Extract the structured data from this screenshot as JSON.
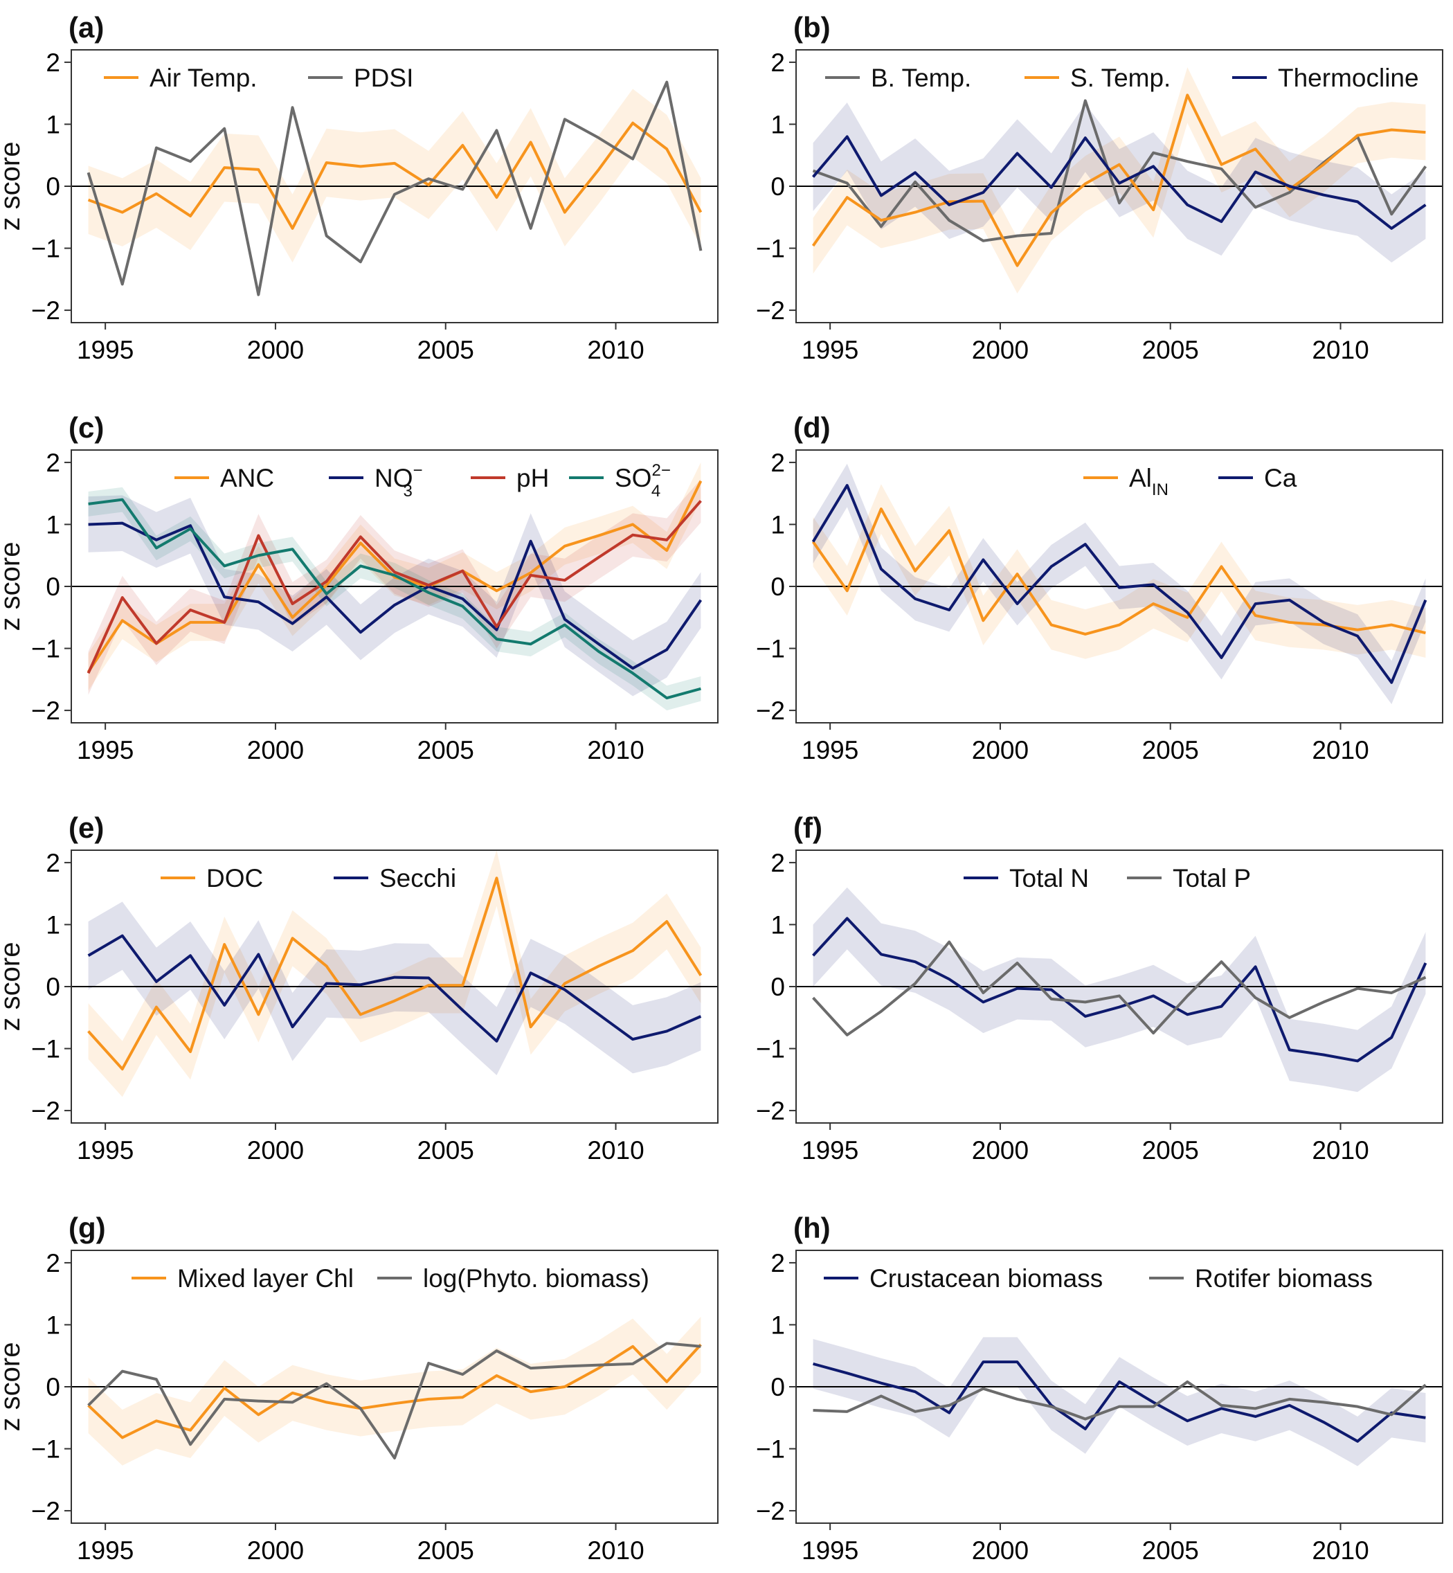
{
  "colors": {
    "orange": "#F7941D",
    "gray": "#6B6B6B",
    "navy": "#0E1A6E",
    "red": "#C0392B",
    "teal": "#137A6E"
  },
  "ylabel": "z score",
  "x_ticks": [
    1995,
    2000,
    2005,
    2010
  ],
  "y_ticks": [
    -2,
    -1,
    0,
    1,
    2
  ],
  "chart_data": [
    {
      "type": "line",
      "panel": "(a)",
      "ylabel": "z score",
      "xlim": [
        1994,
        2013
      ],
      "ylim": [
        -2.2,
        2.2
      ],
      "grid": false,
      "legend_position": "top-left",
      "x": [
        1994.5,
        1995.5,
        1996.5,
        1997.5,
        1998.5,
        1999.5,
        2000.5,
        2001.5,
        2002.5,
        2003.5,
        2004.5,
        2005.5,
        2006.5,
        2007.5,
        2008.5,
        2009.5,
        2010.5,
        2011.5,
        2012.5
      ],
      "series": [
        {
          "name": "Air Temp.",
          "color": "orange",
          "values": [
            -0.22,
            -0.42,
            -0.12,
            -0.48,
            0.3,
            0.27,
            -0.68,
            0.38,
            0.32,
            0.37,
            0.02,
            0.66,
            -0.18,
            0.71,
            -0.42,
            0.27,
            1.02,
            0.6,
            -0.42
          ],
          "band": 0.55
        },
        {
          "name": "PDSI",
          "color": "gray",
          "values": [
            0.22,
            -1.58,
            0.62,
            0.4,
            0.93,
            -1.75,
            1.27,
            -0.8,
            -1.22,
            -0.13,
            0.12,
            -0.05,
            0.9,
            -0.68,
            1.08,
            0.78,
            0.44,
            1.68,
            -1.04
          ]
        }
      ]
    },
    {
      "type": "line",
      "panel": "(b)",
      "ylabel": "",
      "xlim": [
        1994,
        2013
      ],
      "ylim": [
        -2.2,
        2.2
      ],
      "grid": false,
      "legend_position": "top-center",
      "x": [
        1994.5,
        1995.5,
        1996.5,
        1997.5,
        1998.5,
        1999.5,
        2000.5,
        2001.5,
        2002.5,
        2003.5,
        2004.5,
        2005.5,
        2006.5,
        2007.5,
        2008.5,
        2009.5,
        2010.5,
        2011.5,
        2012.5
      ],
      "series": [
        {
          "name": "B. Temp.",
          "color": "gray",
          "values": [
            0.25,
            0.05,
            -0.65,
            0.07,
            -0.55,
            -0.88,
            -0.8,
            -0.76,
            1.38,
            -0.27,
            0.54,
            0.4,
            0.28,
            -0.34,
            -0.1,
            0.38,
            0.8,
            -0.45,
            0.32
          ]
        },
        {
          "name": "S. Temp.",
          "color": "orange",
          "values": [
            -0.96,
            -0.18,
            -0.55,
            -0.42,
            -0.25,
            -0.24,
            -1.28,
            -0.43,
            0.04,
            0.35,
            -0.38,
            1.47,
            0.35,
            0.6,
            -0.05,
            0.35,
            0.82,
            0.91,
            0.87
          ],
          "band": 0.45
        },
        {
          "name": "Thermocline",
          "color": "navy",
          "values": [
            0.15,
            0.8,
            -0.15,
            0.22,
            -0.3,
            -0.1,
            0.53,
            -0.02,
            0.78,
            0.05,
            0.32,
            -0.3,
            -0.57,
            0.23,
            0.0,
            -0.14,
            -0.25,
            -0.68,
            -0.3
          ],
          "band": 0.55
        }
      ]
    },
    {
      "type": "line",
      "panel": "(c)",
      "ylabel": "z score",
      "xlim": [
        1994,
        2013
      ],
      "ylim": [
        -2.2,
        2.2
      ],
      "grid": false,
      "legend_position": "top-right",
      "x": [
        1994.5,
        1995.5,
        1996.5,
        1997.5,
        1998.5,
        1999.5,
        2000.5,
        2001.5,
        2002.5,
        2003.5,
        2004.5,
        2005.5,
        2006.5,
        2007.5,
        2008.5,
        2009.5,
        2010.5,
        2011.5,
        2012.5
      ],
      "series": [
        {
          "name": "ANC",
          "color": "orange",
          "values": [
            -1.38,
            -0.55,
            -0.92,
            -0.58,
            -0.58,
            0.35,
            -0.5,
            0.02,
            0.7,
            0.15,
            0.0,
            0.25,
            -0.07,
            0.22,
            0.65,
            0.82,
            1.0,
            0.58,
            1.7
          ],
          "band": 0.3
        },
        {
          "name": "NO3",
          "sub": "3",
          "sup": "−",
          "color": "navy",
          "values": [
            1.0,
            1.02,
            0.75,
            0.98,
            -0.17,
            -0.25,
            -0.6,
            -0.17,
            -0.74,
            -0.3,
            0.0,
            -0.2,
            -0.7,
            0.73,
            -0.53,
            -0.93,
            -1.32,
            -1.02,
            -0.22
          ],
          "band": 0.45
        },
        {
          "name": "pH",
          "color": "red",
          "values": [
            -1.4,
            -0.18,
            -0.92,
            -0.38,
            -0.58,
            0.82,
            -0.28,
            0.08,
            0.8,
            0.23,
            0.02,
            0.25,
            -0.65,
            0.18,
            0.1,
            0.47,
            0.83,
            0.75,
            1.38
          ],
          "band": 0.35
        },
        {
          "name": "SO4",
          "sub": "4",
          "sup": "2−",
          "color": "teal",
          "values": [
            1.33,
            1.4,
            0.62,
            0.93,
            0.33,
            0.5,
            0.6,
            -0.12,
            0.33,
            0.18,
            -0.1,
            -0.32,
            -0.85,
            -0.93,
            -0.62,
            -1.05,
            -1.4,
            -1.8,
            -1.65
          ],
          "band": 0.2
        }
      ]
    },
    {
      "type": "line",
      "panel": "(d)",
      "ylabel": "",
      "xlim": [
        1994,
        2013
      ],
      "ylim": [
        -2.2,
        2.2
      ],
      "grid": false,
      "legend_position": "top-right",
      "x": [
        1994.5,
        1995.5,
        1996.5,
        1997.5,
        1998.5,
        1999.5,
        2000.5,
        2001.5,
        2002.5,
        2003.5,
        2004.5,
        2005.5,
        2006.5,
        2007.5,
        2008.5,
        2009.5,
        2010.5,
        2011.5,
        2012.5
      ],
      "series": [
        {
          "name": "Al",
          "sub": "IN",
          "color": "orange",
          "values": [
            0.72,
            -0.07,
            1.25,
            0.25,
            0.9,
            -0.55,
            0.2,
            -0.62,
            -0.77,
            -0.62,
            -0.28,
            -0.5,
            0.32,
            -0.47,
            -0.58,
            -0.62,
            -0.7,
            -0.62,
            -0.75
          ],
          "band": 0.4
        },
        {
          "name": "Ca",
          "color": "navy",
          "values": [
            0.72,
            1.63,
            0.28,
            -0.2,
            -0.38,
            0.43,
            -0.28,
            0.32,
            0.68,
            -0.02,
            0.03,
            -0.42,
            -1.15,
            -0.28,
            -0.22,
            -0.58,
            -0.8,
            -1.55,
            -0.22
          ],
          "band": 0.35
        }
      ]
    },
    {
      "type": "line",
      "panel": "(e)",
      "ylabel": "z score",
      "xlim": [
        1994,
        2013
      ],
      "ylim": [
        -2.2,
        2.2
      ],
      "grid": false,
      "legend_position": "top-left",
      "x": [
        1994.5,
        1995.5,
        1996.5,
        1997.5,
        1998.5,
        1999.5,
        2000.5,
        2001.5,
        2002.5,
        2003.5,
        2004.5,
        2005.5,
        2006.5,
        2007.5,
        2008.5,
        2009.5,
        2010.5,
        2011.5,
        2012.5
      ],
      "series": [
        {
          "name": "DOC",
          "color": "orange",
          "values": [
            -0.72,
            -1.33,
            -0.33,
            -1.05,
            0.68,
            -0.45,
            0.78,
            0.33,
            -0.45,
            -0.23,
            0.02,
            0.02,
            1.75,
            -0.65,
            0.05,
            0.33,
            0.58,
            1.05,
            0.18
          ],
          "band": 0.45
        },
        {
          "name": "Secchi",
          "color": "navy",
          "values": [
            0.5,
            0.82,
            0.08,
            0.5,
            -0.3,
            0.52,
            -0.65,
            0.05,
            0.03,
            0.15,
            0.14,
            -0.38,
            -0.88,
            0.22,
            -0.05,
            -0.45,
            -0.85,
            -0.72,
            -0.48
          ],
          "band": 0.55
        }
      ]
    },
    {
      "type": "line",
      "panel": "(f)",
      "ylabel": "",
      "xlim": [
        1994,
        2013
      ],
      "ylim": [
        -2.2,
        2.2
      ],
      "grid": false,
      "legend_position": "top-center",
      "x": [
        1994.5,
        1995.5,
        1996.5,
        1997.5,
        1998.5,
        1999.5,
        2000.5,
        2001.5,
        2002.5,
        2003.5,
        2004.5,
        2005.5,
        2006.5,
        2007.5,
        2008.5,
        2009.5,
        2010.5,
        2011.5,
        2012.5
      ],
      "series": [
        {
          "name": "Total N",
          "color": "navy",
          "values": [
            0.5,
            1.1,
            0.52,
            0.4,
            0.12,
            -0.25,
            -0.03,
            -0.05,
            -0.48,
            -0.33,
            -0.15,
            -0.45,
            -0.32,
            0.32,
            -1.02,
            -1.1,
            -1.2,
            -0.82,
            0.38
          ],
          "band": 0.5
        },
        {
          "name": "Total P",
          "color": "gray",
          "values": [
            -0.18,
            -0.78,
            -0.4,
            0.05,
            0.72,
            -0.1,
            0.38,
            -0.2,
            -0.25,
            -0.15,
            -0.75,
            -0.15,
            0.4,
            -0.18,
            -0.5,
            -0.25,
            -0.03,
            -0.1,
            0.15
          ]
        }
      ]
    },
    {
      "type": "line",
      "panel": "(g)",
      "ylabel": "z score",
      "xlim": [
        1994,
        2013
      ],
      "ylim": [
        -2.2,
        2.2
      ],
      "grid": false,
      "legend_position": "top-left",
      "x": [
        1994.5,
        1995.5,
        1996.5,
        1997.5,
        1998.5,
        1999.5,
        2000.5,
        2001.5,
        2002.5,
        2003.5,
        2004.5,
        2005.5,
        2006.5,
        2007.5,
        2008.5,
        2009.5,
        2010.5,
        2011.5,
        2012.5
      ],
      "series": [
        {
          "name": "Mixed layer Chl",
          "color": "orange",
          "values": [
            -0.3,
            -0.82,
            -0.55,
            -0.7,
            -0.02,
            -0.45,
            -0.1,
            -0.25,
            -0.35,
            -0.27,
            -0.2,
            -0.17,
            0.18,
            -0.08,
            0.0,
            0.3,
            0.65,
            0.08,
            0.68
          ],
          "band": 0.45
        },
        {
          "name": "log(Phyto. biomass)",
          "color": "gray",
          "values": [
            -0.3,
            0.25,
            0.12,
            -0.93,
            -0.2,
            -0.23,
            -0.25,
            0.05,
            -0.35,
            -1.15,
            0.38,
            0.2,
            0.58,
            0.3,
            0.33,
            0.35,
            0.37,
            0.7,
            0.65
          ]
        }
      ]
    },
    {
      "type": "line",
      "panel": "(h)",
      "ylabel": "",
      "xlim": [
        1994,
        2013
      ],
      "ylim": [
        -2.2,
        2.2
      ],
      "grid": false,
      "legend_position": "top-center",
      "x": [
        1994.5,
        1995.5,
        1996.5,
        1997.5,
        1998.5,
        1999.5,
        2000.5,
        2001.5,
        2002.5,
        2003.5,
        2004.5,
        2005.5,
        2006.5,
        2007.5,
        2008.5,
        2009.5,
        2010.5,
        2011.5,
        2012.5
      ],
      "series": [
        {
          "name": "Crustacean biomass",
          "color": "navy",
          "values": [
            0.37,
            0.22,
            0.06,
            -0.08,
            -0.42,
            0.4,
            0.4,
            -0.3,
            -0.68,
            0.08,
            -0.25,
            -0.55,
            -0.35,
            -0.48,
            -0.3,
            -0.57,
            -0.88,
            -0.42,
            -0.5
          ],
          "band": 0.4
        },
        {
          "name": "Rotifer biomass",
          "color": "gray",
          "values": [
            -0.38,
            -0.4,
            -0.15,
            -0.4,
            -0.3,
            -0.03,
            -0.2,
            -0.32,
            -0.52,
            -0.32,
            -0.32,
            0.08,
            -0.3,
            -0.35,
            -0.2,
            -0.25,
            -0.32,
            -0.45,
            0.03
          ]
        }
      ]
    }
  ]
}
